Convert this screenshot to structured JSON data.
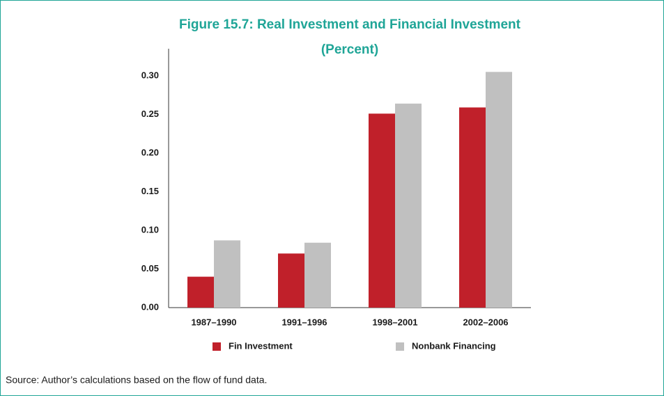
{
  "chart_data": {
    "type": "bar",
    "title": "Figure 15.7: Real Investment and Financial Investment",
    "subtitle": "(Percent)",
    "categories": [
      "1987–1990",
      "1991–1996",
      "1998–2001",
      "2002–2006"
    ],
    "series": [
      {
        "name": "Fin Investment",
        "color": "#c0202a",
        "values": [
          0.04,
          0.07,
          0.251,
          0.259
        ]
      },
      {
        "name": "Nonbank Financing",
        "color": "#c0c0c0",
        "values": [
          0.087,
          0.084,
          0.264,
          0.305
        ]
      }
    ],
    "ylim": [
      0,
      0.335
    ],
    "yticks": [
      {
        "value": 0,
        "label": "0.00"
      },
      {
        "value": 0.05,
        "label": "0.05"
      },
      {
        "value": 0.1,
        "label": "0.10"
      },
      {
        "value": 0.15,
        "label": "0.15"
      },
      {
        "value": 0.2,
        "label": "0.20"
      },
      {
        "value": 0.25,
        "label": "0.25"
      },
      {
        "value": 0.3,
        "label": "0.30"
      }
    ],
    "grid": false,
    "source": "Source: Author’s calculations based on the flow of fund data."
  }
}
